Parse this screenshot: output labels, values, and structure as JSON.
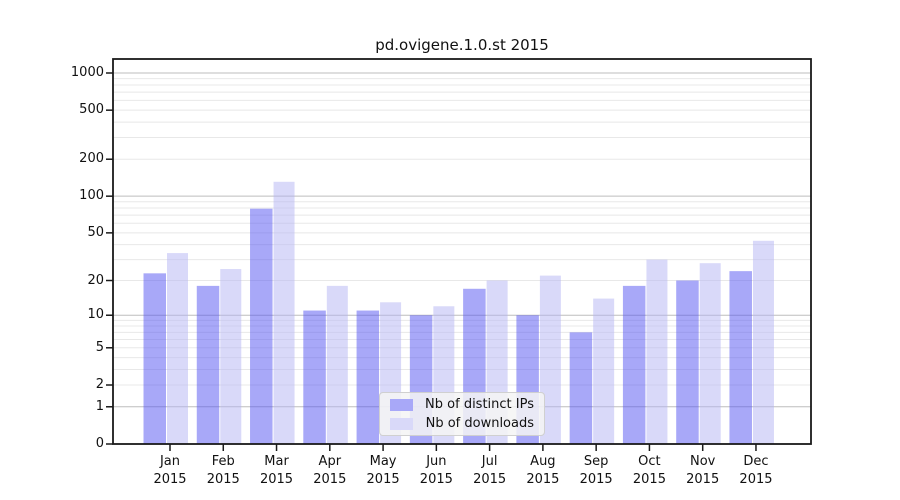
{
  "chart_data": {
    "type": "bar",
    "title": "pd.ovigene.1.0.st 2015",
    "x_year": "2015",
    "categories": [
      "Jan",
      "Feb",
      "Mar",
      "Apr",
      "May",
      "Jun",
      "Jul",
      "Aug",
      "Sep",
      "Oct",
      "Nov",
      "Dec"
    ],
    "series": [
      {
        "name": "Nb of distinct IPs",
        "color": "#a8a8f8",
        "values": [
          23,
          18,
          79,
          11,
          11,
          10,
          17,
          10,
          7,
          18,
          20,
          24
        ]
      },
      {
        "name": "Nb of downloads",
        "color": "#d9d9f9",
        "values": [
          34,
          25,
          131,
          18,
          13,
          12,
          20,
          22,
          14,
          30,
          28,
          43
        ]
      }
    ],
    "y_ticks": [
      0,
      1,
      2,
      5,
      10,
      20,
      50,
      100,
      200,
      500,
      1000
    ],
    "y_scale": "log1p",
    "ylim": [
      0,
      1000
    ],
    "grid": "major-and-minor",
    "legend_position": "lower-center"
  }
}
